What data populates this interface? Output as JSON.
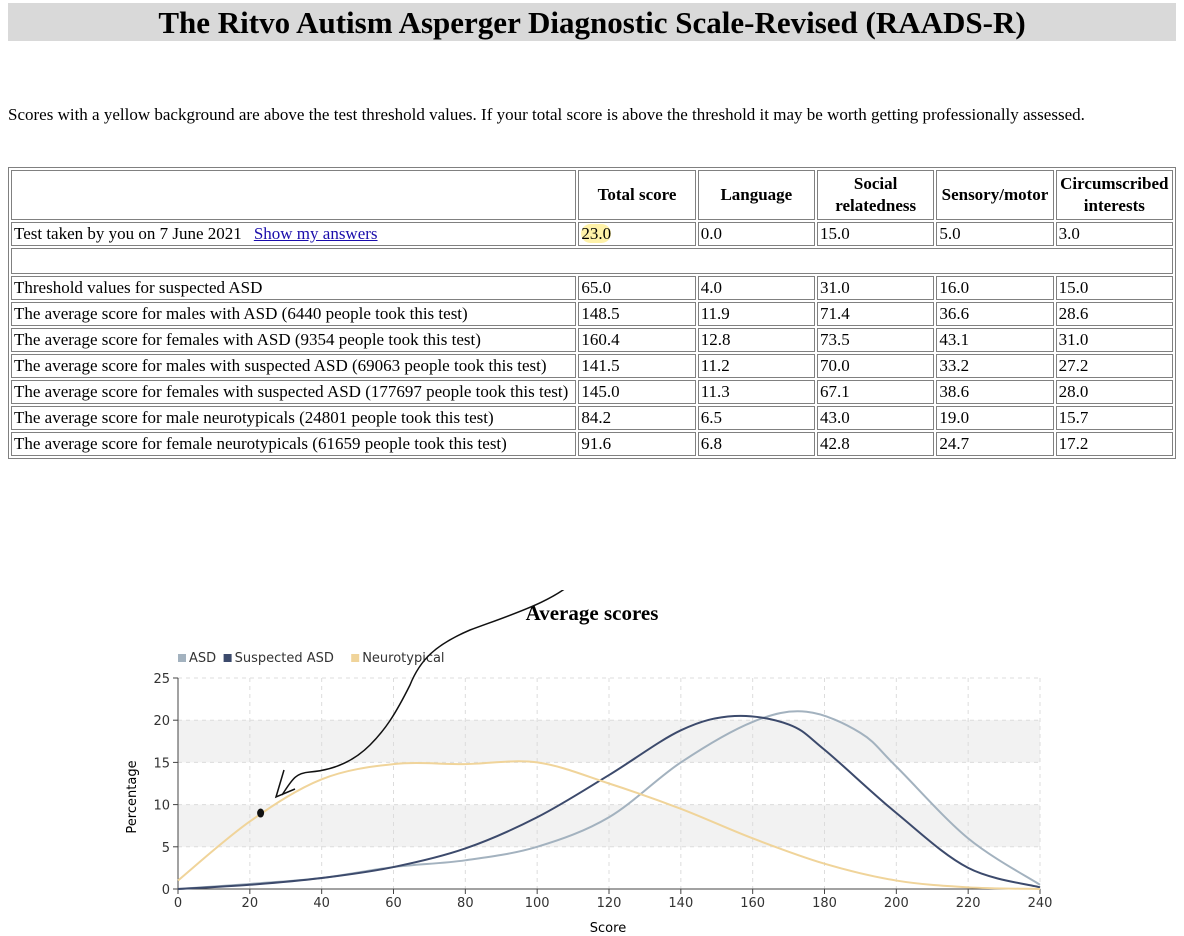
{
  "page": {
    "title": "The Ritvo Autism Asperger Diagnostic Scale-Revised (RAADS-R)",
    "intro": "Scores with a yellow background are above the test threshold values. If your total score is above the threshold it may be worth getting professionally assessed."
  },
  "table": {
    "headers": [
      "",
      "Total score",
      "Language",
      "Social relatedness",
      "Sensory/motor",
      "Circumscribed interests"
    ],
    "user_row": {
      "label": "Test taken by you on 7 June 2021",
      "link": "Show my answers",
      "values": [
        "23.0",
        "0.0",
        "15.0",
        "5.0",
        "3.0"
      ]
    },
    "rows": [
      {
        "label": "Threshold values for suspected ASD",
        "values": [
          "65.0",
          "4.0",
          "31.0",
          "16.0",
          "15.0"
        ]
      },
      {
        "label": "The average score for males with ASD (6440 people took this test)",
        "values": [
          "148.5",
          "11.9",
          "71.4",
          "36.6",
          "28.6"
        ]
      },
      {
        "label": "The average score for females with ASD (9354 people took this test)",
        "values": [
          "160.4",
          "12.8",
          "73.5",
          "43.1",
          "31.0"
        ]
      },
      {
        "label": "The average score for males with suspected ASD (69063 people took this test)",
        "values": [
          "141.5",
          "11.2",
          "70.0",
          "33.2",
          "27.2"
        ]
      },
      {
        "label": "The average score for females with suspected ASD (177697 people took this test)",
        "values": [
          "145.0",
          "11.3",
          "67.1",
          "38.6",
          "28.0"
        ]
      },
      {
        "label": "The average score for male neurotypicals (24801 people took this test)",
        "values": [
          "84.2",
          "6.5",
          "43.0",
          "19.0",
          "15.7"
        ]
      },
      {
        "label": "The average score for female neurotypicals (61659 people took this test)",
        "values": [
          "91.6",
          "6.8",
          "42.8",
          "24.7",
          "17.2"
        ]
      }
    ]
  },
  "colors": {
    "asd": "#a3b2bf",
    "suspected": "#3c4a6c",
    "neurotypical": "#f0d49a",
    "highlight": "#fff2a8"
  },
  "chart_data": {
    "type": "line",
    "title": "Average scores",
    "xlabel": "Score",
    "ylabel": "Percentage",
    "xlim": [
      0,
      240
    ],
    "ylim": [
      0,
      25
    ],
    "xticks": [
      0,
      20,
      40,
      60,
      80,
      100,
      120,
      140,
      160,
      180,
      200,
      220,
      240
    ],
    "yticks": [
      0,
      5,
      10,
      15,
      20,
      25
    ],
    "grid": true,
    "legend": "top-left",
    "series": [
      {
        "name": "ASD",
        "color": "#a3b2bf",
        "x": [
          0,
          20,
          40,
          60,
          80,
          100,
          120,
          140,
          160,
          175,
          190,
          200,
          220,
          240
        ],
        "y": [
          0,
          0.6,
          1.3,
          2.6,
          3.4,
          5.0,
          8.5,
          15.0,
          19.8,
          21.0,
          18.5,
          14.5,
          6.0,
          0.5
        ]
      },
      {
        "name": "Suspected ASD",
        "color": "#3c4a6c",
        "x": [
          0,
          20,
          40,
          60,
          80,
          100,
          120,
          140,
          155,
          170,
          180,
          200,
          220,
          240
        ],
        "y": [
          0,
          0.5,
          1.3,
          2.6,
          4.8,
          8.5,
          13.5,
          18.8,
          20.5,
          19.5,
          16.5,
          9.0,
          2.5,
          0.2
        ]
      },
      {
        "name": "Neurotypical",
        "color": "#f0d49a",
        "x": [
          0,
          20,
          40,
          60,
          80,
          100,
          120,
          140,
          160,
          180,
          200,
          220,
          240
        ],
        "y": [
          1.0,
          8.0,
          13.0,
          14.8,
          14.8,
          15.0,
          12.5,
          9.5,
          6.0,
          3.0,
          1.0,
          0.2,
          0
        ]
      }
    ],
    "annotation": {
      "x": 23,
      "y": 9
    }
  }
}
